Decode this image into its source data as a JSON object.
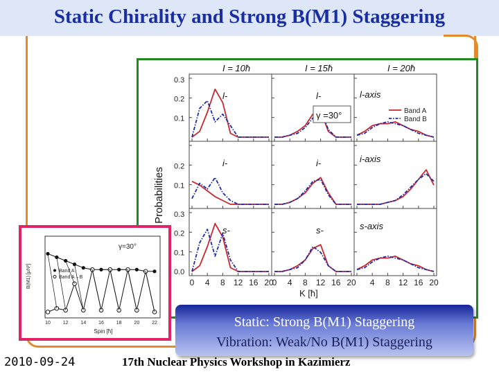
{
  "slide": {
    "title": "Static Chirality and Strong B(M1) Staggering",
    "footer_date": "2010-09-24",
    "footer_venue": "17th Nuclear Physics Workshop in Kazimierz",
    "caption_line1": "Static:   Strong B(M1) Staggering",
    "caption_line2": "Vibration:  Weak/No B(M1) Staggering"
  },
  "colors": {
    "band_a": "#c8272d",
    "band_b": "#1b2bb0",
    "title": "#1a2ea3",
    "orange_frame": "#e38a2a",
    "green_frame": "#1f8a1f",
    "pink_frame": "#e0246a"
  },
  "main_figure": {
    "column_titles": [
      "I = 10ħ",
      "I = 15ħ",
      "I = 20ħ"
    ],
    "row_labels": [
      "l-",
      "i-",
      "s-"
    ],
    "axis_row_labels": [
      "l-axis",
      "i-axis",
      "s-axis"
    ],
    "gamma_label": "γ =30°",
    "ylabel": "Probabilities",
    "xlabel": "K [ħ]",
    "yticks_top": [
      "0.3",
      "0.2",
      "0.1"
    ],
    "yticks_mid": [
      "0.2",
      "0.1"
    ],
    "yticks_bot": [
      "0.3",
      "0.2",
      "0.1",
      "0.0"
    ],
    "xticks": [
      "0",
      "4",
      "8",
      "12",
      "16",
      "20"
    ],
    "xticks_right": [
      "4",
      "8",
      "12",
      "16",
      "20"
    ],
    "legend": [
      "Band A",
      "Band B"
    ]
  },
  "inset_figure": {
    "gamma_label": "γ=30°",
    "ylabel": "B(M1) [μN²]",
    "xlabel": "Spin [ħ]",
    "xticks": [
      "10",
      "12",
      "14",
      "16",
      "18",
      "20",
      "22"
    ],
    "legend": [
      "Band A",
      "Band A→B"
    ]
  },
  "chart_data": [
    {
      "type": "line",
      "series": [
        {
          "name": "Band A",
          "panels": {
            "I10_l": {
              "x": [
                0,
                2,
                4,
                6,
                8,
                10,
                12,
                14,
                16,
                18,
                20
              ],
              "y": [
                0.0,
                0.03,
                0.13,
                0.25,
                0.18,
                0.02,
                0,
                0,
                0,
                0,
                0
              ]
            },
            "I15_l": {
              "x": [
                0,
                2,
                4,
                6,
                8,
                10,
                12,
                14,
                16,
                18,
                20
              ],
              "y": [
                0,
                0,
                0.01,
                0.03,
                0.06,
                0.12,
                0.14,
                0.03,
                0,
                0,
                0
              ]
            },
            "I20_l": {
              "x": [
                0,
                2,
                4,
                6,
                8,
                10,
                12,
                14,
                16,
                18,
                20
              ],
              "y": [
                0.01,
                0.03,
                0.06,
                0.07,
                0.07,
                0.08,
                0.06,
                0.04,
                0.03,
                0.01,
                0
              ]
            },
            "I10_i": {
              "x": [
                0,
                2,
                4,
                6,
                8,
                10,
                12,
                14,
                16,
                18,
                20
              ],
              "y": [
                0.12,
                0.1,
                0.07,
                0.04,
                0.02,
                0.0,
                0,
                0,
                0,
                0,
                0
              ]
            },
            "I15_i": {
              "x": [
                0,
                2,
                4,
                6,
                8,
                10,
                12,
                14,
                16,
                18,
                20
              ],
              "y": [
                0,
                0,
                0.01,
                0.03,
                0.06,
                0.11,
                0.14,
                0.06,
                0,
                0,
                0
              ]
            },
            "I20_i": {
              "x": [
                0,
                2,
                4,
                6,
                8,
                10,
                12,
                14,
                16,
                18,
                20
              ],
              "y": [
                0,
                0,
                0,
                0,
                0.01,
                0.02,
                0.04,
                0.08,
                0.13,
                0.18,
                0.1
              ]
            },
            "I10_s": {
              "x": [
                0,
                2,
                4,
                6,
                8,
                10,
                12,
                14,
                16,
                18,
                20
              ],
              "y": [
                0.0,
                0.03,
                0.13,
                0.25,
                0.18,
                0.02,
                0,
                0,
                0,
                0,
                0
              ]
            },
            "I15_s": {
              "x": [
                0,
                2,
                4,
                6,
                8,
                10,
                12,
                14,
                16,
                18,
                20
              ],
              "y": [
                0,
                0,
                0.01,
                0.03,
                0.06,
                0.12,
                0.14,
                0.03,
                0,
                0,
                0
              ]
            },
            "I20_s": {
              "x": [
                0,
                2,
                4,
                6,
                8,
                10,
                12,
                14,
                16,
                18,
                20
              ],
              "y": [
                0.01,
                0.03,
                0.06,
                0.07,
                0.07,
                0.08,
                0.06,
                0.04,
                0.03,
                0.01,
                0
              ]
            }
          }
        },
        {
          "name": "Band B",
          "panels": {
            "I10_l": {
              "x": [
                0,
                2,
                4,
                6,
                8,
                10,
                12,
                14,
                16,
                18,
                20
              ],
              "y": [
                0.0,
                0.15,
                0.19,
                0.08,
                0.12,
                0.06,
                0,
                0,
                0,
                0,
                0
              ]
            },
            "I15_l": {
              "x": [
                0,
                2,
                4,
                6,
                8,
                10,
                12,
                14,
                16,
                18,
                20
              ],
              "y": [
                0,
                0,
                0.01,
                0.02,
                0.05,
                0.1,
                0.14,
                0.04,
                0,
                0,
                0
              ]
            },
            "I20_l": {
              "x": [
                0,
                2,
                4,
                6,
                8,
                10,
                12,
                14,
                16,
                18,
                20
              ],
              "y": [
                0.01,
                0.02,
                0.05,
                0.07,
                0.08,
                0.07,
                0.06,
                0.04,
                0.02,
                0.01,
                0
              ]
            },
            "I10_i": {
              "x": [
                0,
                2,
                4,
                6,
                8,
                10,
                12,
                14,
                16,
                18,
                20
              ],
              "y": [
                0.03,
                0.11,
                0.08,
                0.14,
                0.06,
                0.02,
                0,
                0,
                0,
                0,
                0
              ]
            },
            "I15_i": {
              "x": [
                0,
                2,
                4,
                6,
                8,
                10,
                12,
                14,
                16,
                18,
                20
              ],
              "y": [
                0,
                0,
                0.01,
                0.03,
                0.07,
                0.12,
                0.13,
                0.05,
                0,
                0,
                0
              ]
            },
            "I20_i": {
              "x": [
                0,
                2,
                4,
                6,
                8,
                10,
                12,
                14,
                16,
                18,
                20
              ],
              "y": [
                0,
                0,
                0,
                0,
                0.01,
                0.02,
                0.05,
                0.09,
                0.13,
                0.16,
                0.12
              ]
            },
            "I10_s": {
              "x": [
                0,
                2,
                4,
                6,
                8,
                10,
                12,
                14,
                16,
                18,
                20
              ],
              "y": [
                0.0,
                0.15,
                0.22,
                0.08,
                0.2,
                0.06,
                0,
                0,
                0,
                0,
                0
              ]
            },
            "I15_s": {
              "x": [
                0,
                2,
                4,
                6,
                8,
                10,
                12,
                14,
                16,
                18,
                20
              ],
              "y": [
                0,
                0,
                0.01,
                0.02,
                0.06,
                0.13,
                0.1,
                0.03,
                0,
                0,
                0
              ]
            },
            "I20_s": {
              "x": [
                0,
                2,
                4,
                6,
                8,
                10,
                12,
                14,
                16,
                18,
                20
              ],
              "y": [
                0.01,
                0.02,
                0.05,
                0.07,
                0.08,
                0.07,
                0.06,
                0.04,
                0.02,
                0.01,
                0
              ]
            }
          }
        }
      ],
      "xlabel": "K [ħ]",
      "ylabel": "Probabilities",
      "xlim": [
        0,
        20
      ],
      "ylim": [
        0,
        0.3
      ],
      "legend_position": "top-right"
    },
    {
      "type": "line",
      "x": [
        10,
        11,
        12,
        13,
        14,
        15,
        16,
        17,
        18,
        19,
        20,
        21,
        22
      ],
      "series": [
        {
          "name": "Band A",
          "values": [
            3.4,
            3.2,
            3.0,
            2.8,
            2.6,
            2.5,
            2.5,
            2.5,
            2.5,
            2.5,
            2.5,
            2.4,
            2.4
          ]
        },
        {
          "name": "Band A→B",
          "values": [
            0.1,
            0.3,
            0.2,
            1.7,
            0.2,
            2.5,
            0.2,
            2.5,
            0.2,
            2.5,
            0.2,
            2.4,
            0.1
          ]
        }
      ],
      "xlabel": "Spin [ħ]",
      "ylabel": "B(M1) [μN²]",
      "xlim": [
        10,
        22
      ],
      "legend_position": "left"
    }
  ]
}
